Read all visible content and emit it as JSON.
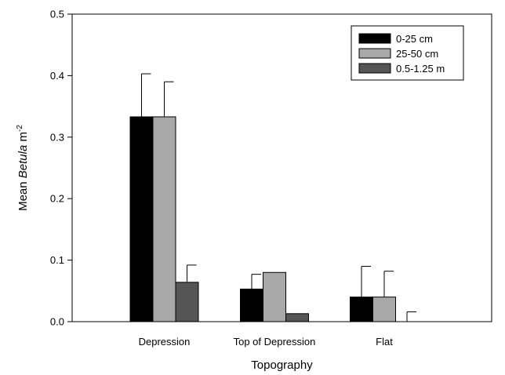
{
  "chart_data": {
    "type": "bar",
    "xlabel": "Topography",
    "ylabel": {
      "prefix": "Mean ",
      "italic": "Betula",
      "unit": " m",
      "sup": "-2"
    },
    "ylim": [
      0,
      0.5
    ],
    "yticks": [
      "0.0",
      "0.1",
      "0.2",
      "0.3",
      "0.4",
      "0.5"
    ],
    "categories": [
      "Depression",
      "Top of Depression",
      "Flat"
    ],
    "series": [
      {
        "name": "0-25 cm",
        "color": "#000000",
        "values": [
          0.333,
          0.053,
          0.04
        ],
        "errors": [
          0.07,
          0.024,
          0.05
        ]
      },
      {
        "name": "25-50 cm",
        "color": "#a8a8a8",
        "values": [
          0.333,
          0.08,
          0.04
        ],
        "errors": [
          0.057,
          0.0,
          0.042
        ]
      },
      {
        "name": "0.5-1.25 m",
        "color": "#555555",
        "values": [
          0.064,
          0.013,
          0.0
        ],
        "errors": [
          0.028,
          0.0,
          0.016
        ]
      }
    ],
    "legend_position": "top-right",
    "grid": false
  }
}
